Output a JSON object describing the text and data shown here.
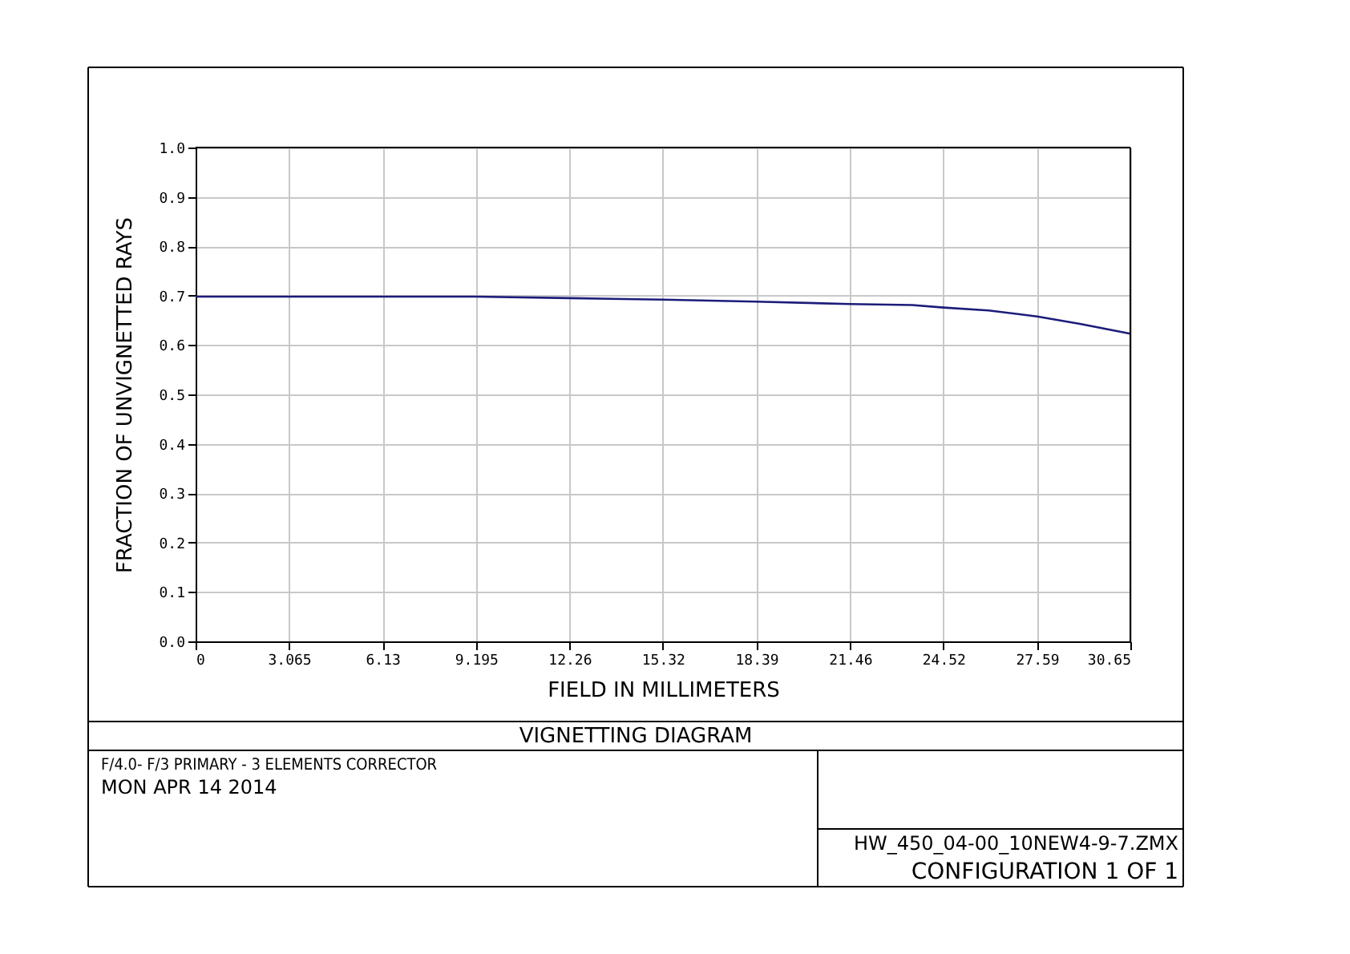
{
  "chart_data": {
    "type": "line",
    "title": "VIGNETTING DIAGRAM",
    "xlabel": "FIELD IN MILLIMETERS",
    "ylabel": "FRACTION OF UNVIGNETTED RAYS",
    "annotations": [
      "F/4.0- F/3 PRIMARY -  3 ELEMENTS CORRECTOR",
      "MON APR 14 2014",
      "HW_450_04-00_10NEW4-9-7.ZMX",
      "CONFIGURATION 1 OF 1"
    ],
    "x": [
      0,
      3.065,
      6.13,
      9.195,
      12.26,
      15.32,
      18.39,
      21.46,
      23.5,
      24.52,
      26,
      27.59,
      29,
      30.65
    ],
    "series": [
      {
        "color": "#1c1c7a",
        "values": [
          0.698,
          0.698,
          0.698,
          0.698,
          0.695,
          0.692,
          0.688,
          0.683,
          0.681,
          0.676,
          0.67,
          0.658,
          0.643,
          0.623
        ]
      }
    ],
    "xlim": [
      0,
      30.65
    ],
    "xticks": [
      0,
      3.065,
      6.13,
      9.195,
      12.26,
      15.32,
      18.39,
      21.46,
      24.52,
      27.59,
      30.65
    ],
    "ylim": [
      0,
      1
    ],
    "yticks": [
      {
        "value": 0,
        "label": "0.0"
      },
      0.1,
      0.2,
      0.3,
      0.4,
      0.5,
      0.6,
      0.7,
      0.8,
      0.9,
      {
        "value": 1,
        "label": "1.0"
      }
    ],
    "grid": true,
    "marker": "none",
    "line_style": "solid"
  }
}
